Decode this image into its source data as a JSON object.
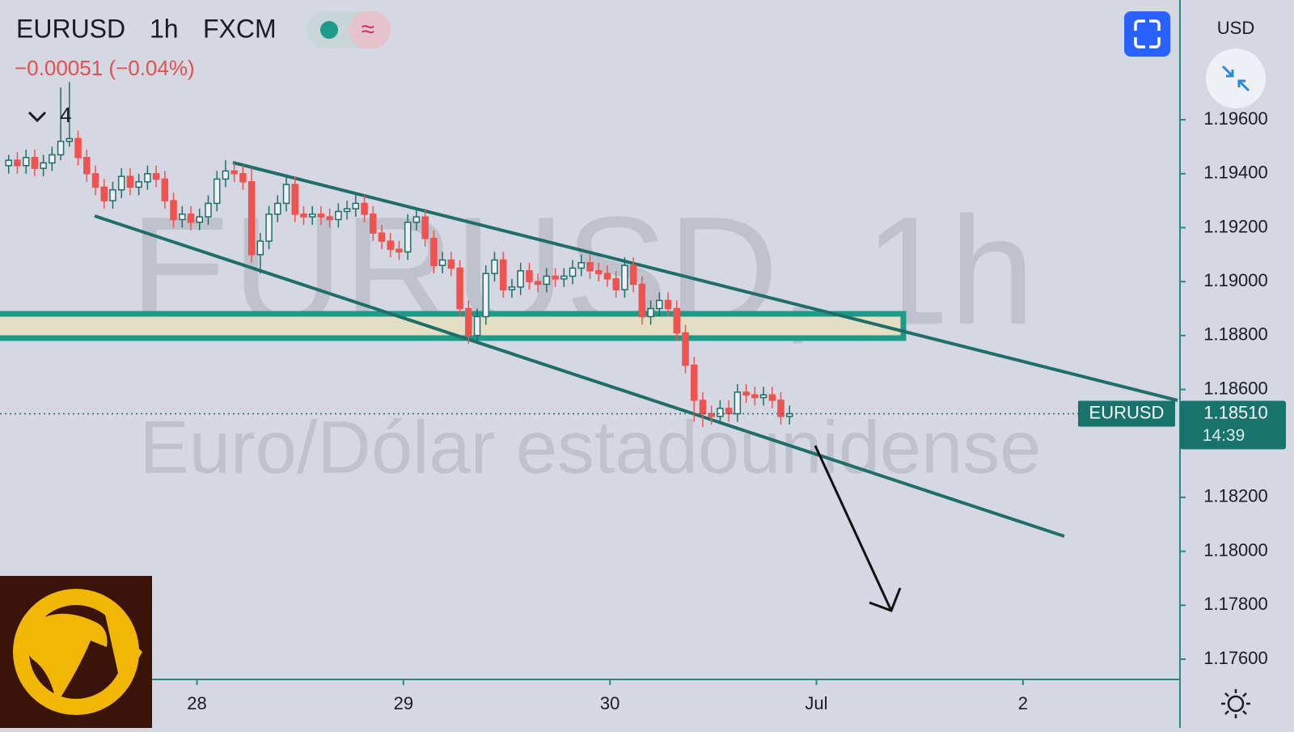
{
  "chart_data": {
    "type": "candlestick",
    "title": "EURUSD",
    "interval": "1h",
    "exchange": "FXCM",
    "change": "−0.00051 (−0.04%)",
    "indicator_count": "4",
    "currency": "USD",
    "watermark_symbol": "EURUSD, 1h",
    "watermark_description": "Euro/Dólar estadounidense",
    "price_tag": "EURUSD",
    "last_price": {
      "value": 1.1851,
      "label": "1.18510"
    },
    "countdown": "14:39",
    "xlim": [
      0,
      136
    ],
    "xticks": [
      {
        "value": 22.7,
        "label": "28"
      },
      {
        "value": 46.5,
        "label": "29"
      },
      {
        "value": 70.3,
        "label": "30"
      },
      {
        "value": 94.1,
        "label": "Jul"
      },
      {
        "value": 117.9,
        "label": "2"
      }
    ],
    "ylim": [
      1.17525,
      1.20044
    ],
    "yticks": [
      {
        "value": 1.176,
        "label": "1.17600"
      },
      {
        "value": 1.178,
        "label": "1.17800"
      },
      {
        "value": 1.18,
        "label": "1.18000"
      },
      {
        "value": 1.182,
        "label": "1.18200"
      },
      {
        "value": 1.186,
        "label": "1.18600"
      },
      {
        "value": 1.188,
        "label": "1.18800"
      },
      {
        "value": 1.19,
        "label": "1.19000"
      },
      {
        "value": 1.192,
        "label": "1.19200"
      },
      {
        "value": 1.194,
        "label": "1.19400"
      },
      {
        "value": 1.196,
        "label": "1.19600"
      }
    ],
    "series": [
      {
        "up_color": "#1f6f68",
        "down_color": "#ef5350",
        "x": [
          1,
          2,
          3,
          4,
          5,
          6,
          7,
          8,
          9,
          10,
          11,
          12,
          13,
          14,
          15,
          16,
          17,
          18,
          19,
          20,
          21,
          22,
          23,
          24,
          25,
          26,
          27,
          28,
          29,
          30,
          31,
          32,
          33,
          34,
          35,
          36,
          37,
          38,
          39,
          40,
          41,
          42,
          43,
          44,
          45,
          46,
          47,
          48,
          49,
          50,
          51,
          52,
          53,
          54,
          55,
          56,
          57,
          58,
          59,
          60,
          61,
          62,
          63,
          64,
          65,
          66,
          67,
          68,
          69,
          70,
          71,
          72,
          73,
          74,
          75,
          76,
          77,
          78,
          79,
          80,
          81,
          82,
          83,
          84,
          85,
          86,
          87,
          88,
          89,
          90,
          91
        ],
        "ohlc": [
          [
            1.1943,
            1.1947,
            1.194,
            1.1945
          ],
          [
            1.1945,
            1.1948,
            1.194,
            1.1943
          ],
          [
            1.1943,
            1.1949,
            1.194,
            1.1946
          ],
          [
            1.1946,
            1.1949,
            1.1939,
            1.1942
          ],
          [
            1.1942,
            1.1947,
            1.1939,
            1.1944
          ],
          [
            1.1944,
            1.195,
            1.1941,
            1.1947
          ],
          [
            1.1947,
            1.1972,
            1.1945,
            1.1952
          ],
          [
            1.1952,
            1.1974,
            1.195,
            1.1953
          ],
          [
            1.1953,
            1.1956,
            1.1943,
            1.1946
          ],
          [
            1.1946,
            1.1949,
            1.1937,
            1.194
          ],
          [
            1.194,
            1.1943,
            1.1932,
            1.1935
          ],
          [
            1.1935,
            1.1938,
            1.1927,
            1.193
          ],
          [
            1.193,
            1.1937,
            1.1927,
            1.1934
          ],
          [
            1.1934,
            1.1942,
            1.1931,
            1.1939
          ],
          [
            1.1939,
            1.1942,
            1.1932,
            1.1935
          ],
          [
            1.1935,
            1.194,
            1.1932,
            1.1937
          ],
          [
            1.1937,
            1.1943,
            1.1934,
            1.194
          ],
          [
            1.194,
            1.1943,
            1.1935,
            1.1938
          ],
          [
            1.1938,
            1.1941,
            1.1927,
            1.193
          ],
          [
            1.193,
            1.1933,
            1.192,
            1.1923
          ],
          [
            1.1923,
            1.1928,
            1.192,
            1.1925
          ],
          [
            1.1925,
            1.1928,
            1.1919,
            1.1922
          ],
          [
            1.1922,
            1.1927,
            1.1919,
            1.1924
          ],
          [
            1.1924,
            1.1932,
            1.1921,
            1.1929
          ],
          [
            1.1929,
            1.1941,
            1.1926,
            1.1938
          ],
          [
            1.1938,
            1.1945,
            1.1935,
            1.1941
          ],
          [
            1.1941,
            1.1944,
            1.1937,
            1.194
          ],
          [
            1.194,
            1.1943,
            1.1934,
            1.1937
          ],
          [
            1.1937,
            1.1942,
            1.1907,
            1.191
          ],
          [
            1.191,
            1.1918,
            1.1903,
            1.1915
          ],
          [
            1.1915,
            1.1928,
            1.1912,
            1.1925
          ],
          [
            1.1925,
            1.1932,
            1.1922,
            1.1929
          ],
          [
            1.1929,
            1.1939,
            1.1926,
            1.1936
          ],
          [
            1.1936,
            1.1939,
            1.1922,
            1.1925
          ],
          [
            1.1925,
            1.1928,
            1.1921,
            1.1924
          ],
          [
            1.1924,
            1.1928,
            1.1921,
            1.1925
          ],
          [
            1.1925,
            1.1928,
            1.1921,
            1.1924
          ],
          [
            1.1924,
            1.1927,
            1.192,
            1.1923
          ],
          [
            1.1923,
            1.1929,
            1.192,
            1.1926
          ],
          [
            1.1926,
            1.193,
            1.1923,
            1.1927
          ],
          [
            1.1927,
            1.1932,
            1.1924,
            1.1929
          ],
          [
            1.1929,
            1.1932,
            1.1922,
            1.1925
          ],
          [
            1.1925,
            1.1928,
            1.1915,
            1.1918
          ],
          [
            1.1918,
            1.1921,
            1.1912,
            1.1915
          ],
          [
            1.1915,
            1.1918,
            1.1909,
            1.1912
          ],
          [
            1.1912,
            1.1915,
            1.1908,
            1.1911
          ],
          [
            1.1911,
            1.1925,
            1.1908,
            1.1922
          ],
          [
            1.1922,
            1.1927,
            1.1919,
            1.1924
          ],
          [
            1.1924,
            1.1927,
            1.1913,
            1.1916
          ],
          [
            1.1916,
            1.1919,
            1.1903,
            1.1906
          ],
          [
            1.1906,
            1.1911,
            1.1903,
            1.1908
          ],
          [
            1.1908,
            1.1911,
            1.1902,
            1.1905
          ],
          [
            1.1905,
            1.1908,
            1.1887,
            1.189
          ],
          [
            1.189,
            1.1893,
            1.1877,
            1.188
          ],
          [
            1.188,
            1.189,
            1.1877,
            1.1887
          ],
          [
            1.1887,
            1.1906,
            1.1884,
            1.1903
          ],
          [
            1.1903,
            1.1911,
            1.19,
            1.1908
          ],
          [
            1.1908,
            1.1911,
            1.1894,
            1.1897
          ],
          [
            1.1897,
            1.1901,
            1.1894,
            1.1898
          ],
          [
            1.1898,
            1.1907,
            1.1895,
            1.1904
          ],
          [
            1.1904,
            1.1907,
            1.1897,
            1.19
          ],
          [
            1.19,
            1.1903,
            1.1896,
            1.1899
          ],
          [
            1.1899,
            1.1905,
            1.1896,
            1.1902
          ],
          [
            1.1902,
            1.1905,
            1.1898,
            1.1901
          ],
          [
            1.1901,
            1.1905,
            1.1898,
            1.1902
          ],
          [
            1.1902,
            1.1908,
            1.1899,
            1.1905
          ],
          [
            1.1905,
            1.191,
            1.1902,
            1.1907
          ],
          [
            1.1907,
            1.191,
            1.1901,
            1.1904
          ],
          [
            1.1904,
            1.1907,
            1.19,
            1.1903
          ],
          [
            1.1903,
            1.1906,
            1.1898,
            1.1901
          ],
          [
            1.1901,
            1.1904,
            1.1894,
            1.1897
          ],
          [
            1.1897,
            1.1909,
            1.1894,
            1.1906
          ],
          [
            1.1906,
            1.1909,
            1.1896,
            1.1899
          ],
          [
            1.1899,
            1.1902,
            1.1884,
            1.1887
          ],
          [
            1.1887,
            1.1893,
            1.1884,
            1.189
          ],
          [
            1.189,
            1.1896,
            1.1887,
            1.1893
          ],
          [
            1.1893,
            1.1896,
            1.1887,
            1.189
          ],
          [
            1.189,
            1.1893,
            1.1878,
            1.1881
          ],
          [
            1.1881,
            1.1884,
            1.1866,
            1.1869
          ],
          [
            1.1869,
            1.1872,
            1.1848,
            1.1856
          ],
          [
            1.1856,
            1.1859,
            1.1846,
            1.1851
          ],
          [
            1.1851,
            1.1854,
            1.1847,
            1.185
          ],
          [
            1.185,
            1.1856,
            1.1847,
            1.1853
          ],
          [
            1.1853,
            1.1856,
            1.1848,
            1.1851
          ],
          [
            1.1851,
            1.1862,
            1.1848,
            1.1859
          ],
          [
            1.1859,
            1.1862,
            1.1855,
            1.1858
          ],
          [
            1.1858,
            1.1861,
            1.1854,
            1.1857
          ],
          [
            1.1857,
            1.1861,
            1.1854,
            1.1858
          ],
          [
            1.1858,
            1.1861,
            1.1853,
            1.1856
          ],
          [
            1.1856,
            1.1859,
            1.1847,
            1.185
          ],
          [
            1.185,
            1.1854,
            1.1847,
            1.1851
          ]
        ]
      }
    ]
  }
}
